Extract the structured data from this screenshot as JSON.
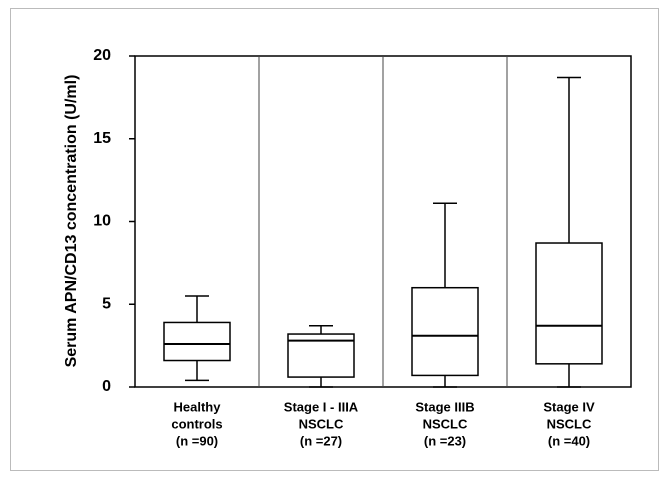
{
  "chart_data": {
    "type": "box",
    "ylabel": "Serum APN/CD13 concentration (U/ml)",
    "categories": [
      [
        "Healthy",
        "controls",
        "(n =90)"
      ],
      [
        "Stage I - IIIA",
        "NSCLC",
        "(n =27)"
      ],
      [
        "Stage IIIB",
        "NSCLC",
        "(n =23)"
      ],
      [
        "Stage IV",
        "NSCLC",
        "(n =40)"
      ]
    ],
    "boxes": [
      {
        "whislo": 0.4,
        "q1": 1.6,
        "med": 2.6,
        "q3": 3.9,
        "whishi": 5.5
      },
      {
        "whislo": 0,
        "q1": 0.6,
        "med": 2.8,
        "q3": 3.2,
        "whishi": 3.7
      },
      {
        "whislo": 0,
        "q1": 0.7,
        "med": 3.1,
        "q3": 6.0,
        "whishi": 11.1
      },
      {
        "whislo": 0,
        "q1": 1.4,
        "med": 3.7,
        "q3": 8.7,
        "whishi": 18.7
      }
    ],
    "color": "#000000",
    "ylim": [
      0,
      20
    ],
    "yticks": [
      0,
      5,
      10,
      15,
      20
    ]
  }
}
